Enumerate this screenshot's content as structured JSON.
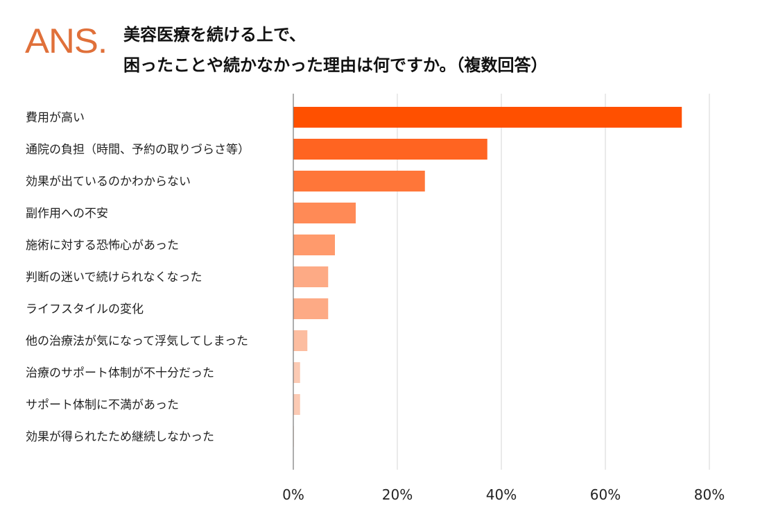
{
  "logo_text": "ANS.",
  "chart_data": {
    "type": "bar",
    "orientation": "horizontal",
    "title_lines": [
      "美容医療を続ける上で、",
      "困ったことや続かなかった理由は何ですか。（複数回答）"
    ],
    "categories": [
      "費用が高い",
      "通院の負担（時間、予約の取りづらさ等）",
      "効果が出ているのかわからない",
      "副作用への不安",
      "施術に対する恐怖心があった",
      "判断の迷いで続けられなくなった",
      "ライフスタイルの変化",
      "他の治療法が気になって浮気してしまった",
      "治療のサポート体制が不十分だった",
      "サポート体制に不満があった",
      "効果が得られたため継続しなかった"
    ],
    "values": [
      74.7,
      37.3,
      25.3,
      12.0,
      8.0,
      6.7,
      6.7,
      2.7,
      1.3,
      1.3,
      0
    ],
    "unit": "%",
    "xlim": [
      0,
      80
    ],
    "xticks": [
      "0%",
      "20%",
      "40%",
      "60%",
      "80%"
    ],
    "grid": "vertical",
    "legend": "none",
    "colors": [
      "#FF5000",
      "#FF6421",
      "#FF7639",
      "#FF8A56",
      "#FF9A6C",
      "#FDAA85",
      "#FDAA85",
      "#FCBDA0",
      "#FBCAB4",
      "#FBCAB4",
      "#FBD6C6"
    ]
  }
}
